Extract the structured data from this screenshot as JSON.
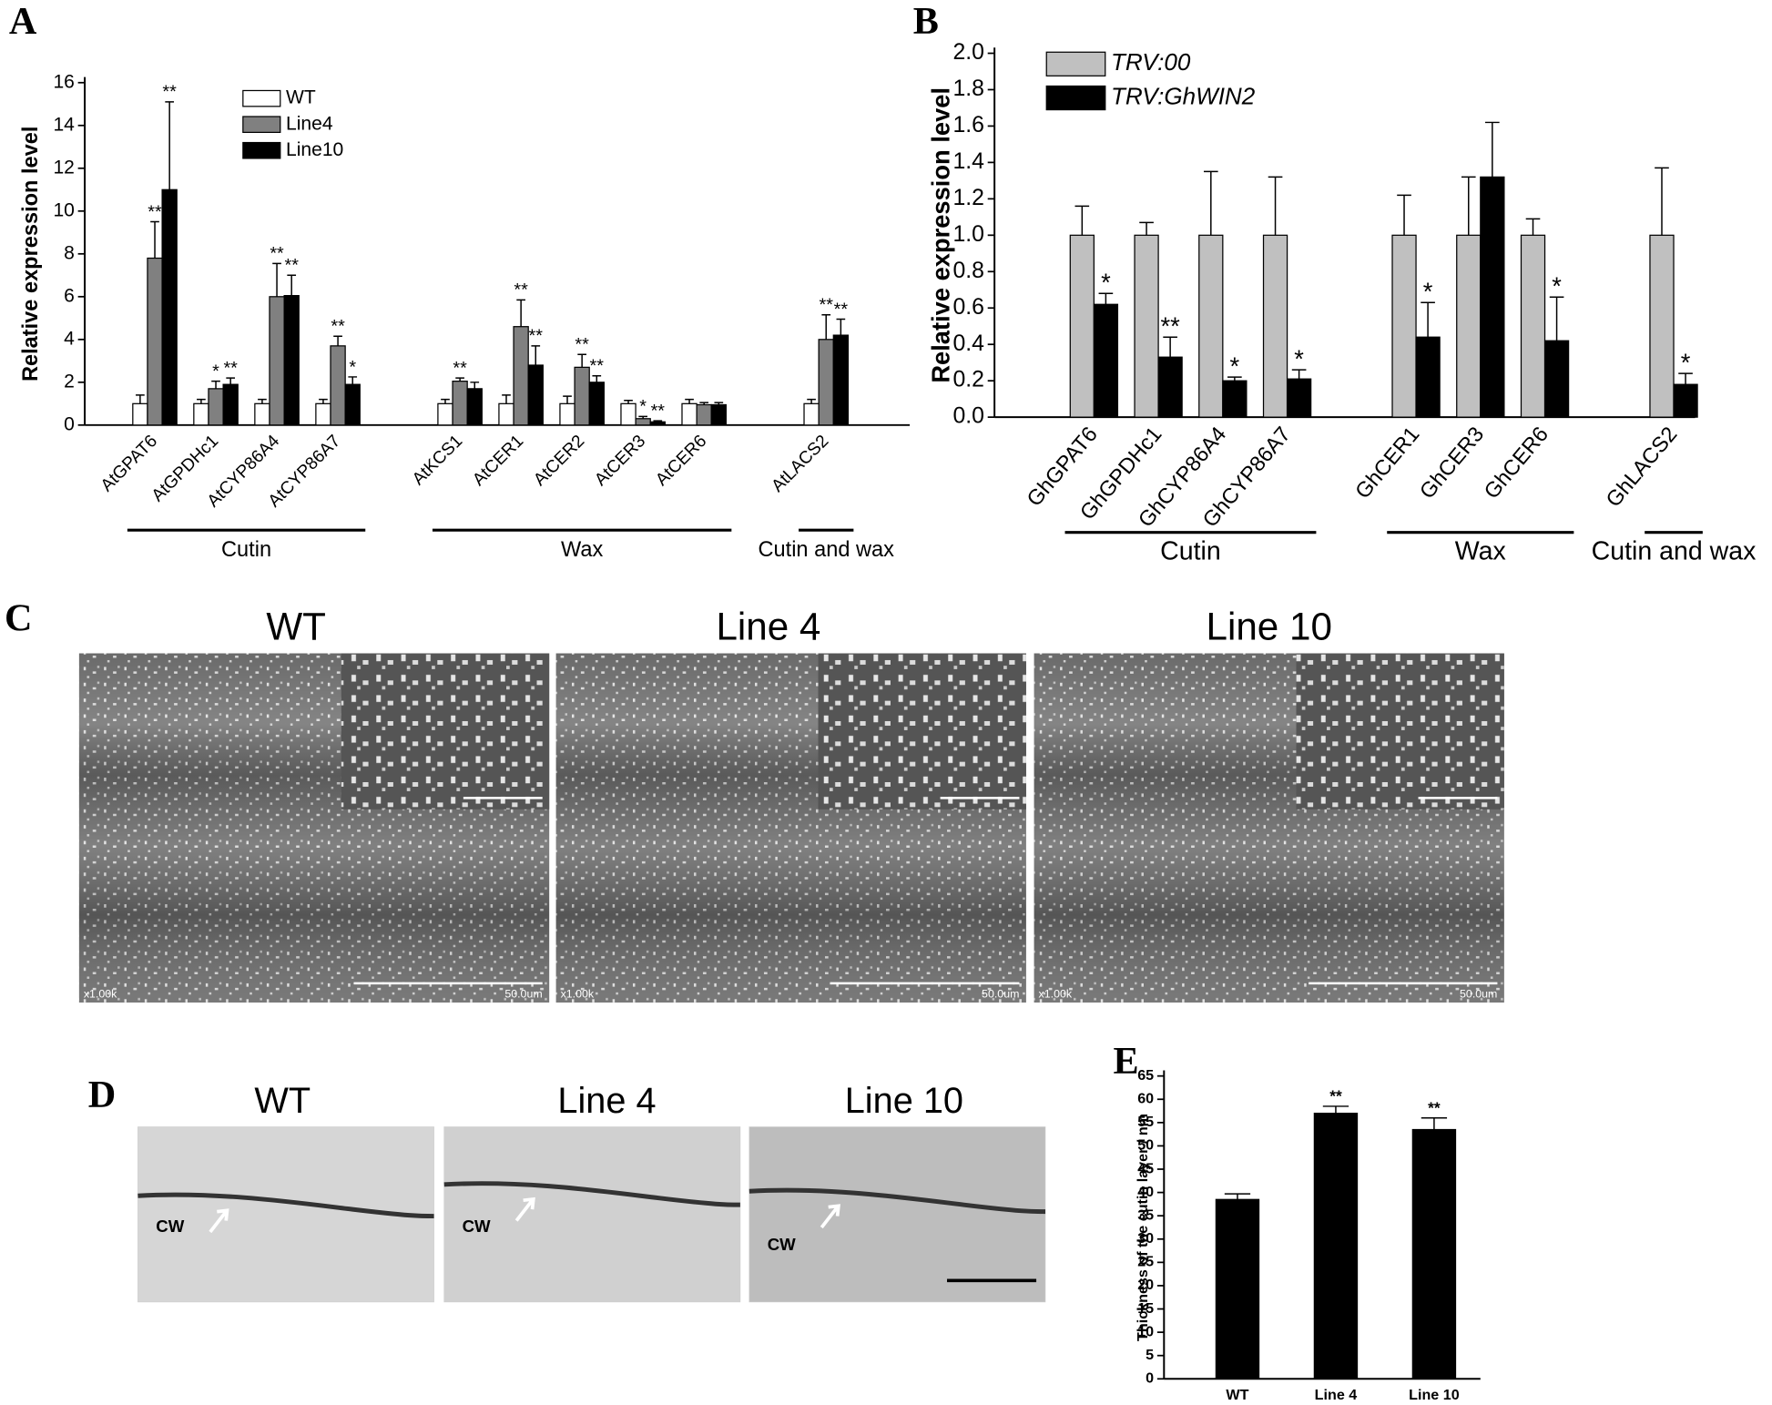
{
  "panel_labels": [
    "A",
    "B",
    "C",
    "D",
    "E"
  ],
  "chart_data": [
    {
      "type": "bar",
      "ylabel": "Relative expression level",
      "groups": [
        {
          "label": "Cutin",
          "categories": [
            "AtGPAT6",
            "AtGPDHc1",
            "AtCYP86A4",
            "AtCYP86A7"
          ]
        },
        {
          "label": "Wax",
          "categories": [
            "AtKCS1",
            "AtCER1",
            "AtCER2",
            "AtCER3",
            "AtCER6"
          ]
        },
        {
          "label": "Cutin and wax",
          "categories": [
            "AtLACS2"
          ]
        }
      ],
      "series": [
        {
          "name": "WT",
          "color": "#ffffff",
          "values": [
            1,
            1,
            1,
            1,
            1,
            1,
            1,
            1,
            1,
            1
          ],
          "errors": [
            0.4,
            0.2,
            0.2,
            0.2,
            0.2,
            0.4,
            0.35,
            0.15,
            0.2,
            0.2
          ]
        },
        {
          "name": "Line4",
          "color": "#808080",
          "values": [
            7.8,
            1.7,
            6.0,
            3.7,
            2.05,
            4.6,
            2.7,
            0.3,
            0.95,
            4.0
          ],
          "errors": [
            1.7,
            0.35,
            1.55,
            0.45,
            0.15,
            1.25,
            0.6,
            0.1,
            0.1,
            1.15
          ],
          "annotations": [
            "**",
            "*",
            "**",
            "**",
            "**",
            "**",
            "**",
            "*",
            null,
            "**"
          ]
        },
        {
          "name": "Line10",
          "color": "#000000",
          "values": [
            11.0,
            1.9,
            6.05,
            1.9,
            1.7,
            2.8,
            2.0,
            0.15,
            0.95,
            4.2
          ],
          "errors": [
            4.1,
            0.3,
            0.95,
            0.35,
            0.3,
            0.9,
            0.3,
            0.05,
            0.1,
            0.75
          ],
          "annotations": [
            "**",
            "**",
            "**",
            "*",
            null,
            "**",
            "**",
            "**",
            null,
            "**"
          ]
        }
      ],
      "ylim": [
        0,
        16
      ],
      "yticks": [
        0,
        2,
        4,
        6,
        8,
        10,
        12,
        14,
        16
      ],
      "legend": "upper left"
    },
    {
      "type": "bar",
      "ylabel": "Relative expression level",
      "groups": [
        {
          "label": "Cutin",
          "categories": [
            "GhGPAT6",
            "GhGPDHc1",
            "GhCYP86A4",
            "GhCYP86A7"
          ]
        },
        {
          "label": "Wax",
          "categories": [
            "GhCER1",
            "GhCER3",
            "GhCER6"
          ]
        },
        {
          "label": "Cutin and wax",
          "categories": [
            "GhLACS2"
          ]
        }
      ],
      "series": [
        {
          "name": "TRV:00",
          "color": "#c0c0c0",
          "values": [
            1,
            1,
            1,
            1,
            1,
            1,
            1,
            1
          ],
          "errors": [
            0.16,
            0.07,
            0.35,
            0.32,
            0.22,
            0.32,
            0.09,
            0.37
          ]
        },
        {
          "name": "TRV:GhWIN2",
          "color": "#000000",
          "values": [
            0.62,
            0.33,
            0.2,
            0.21,
            0.44,
            1.32,
            0.42,
            0.18
          ],
          "errors": [
            0.06,
            0.11,
            0.02,
            0.05,
            0.19,
            0.3,
            0.24,
            0.06
          ],
          "annotations": [
            "*",
            "**",
            "*",
            "*",
            "*",
            null,
            "*",
            "*"
          ]
        }
      ],
      "ylim": [
        0,
        2
      ],
      "yticks": [
        {
          "value": 0,
          "label": "0.0"
        },
        0.2,
        0.4,
        0.6,
        0.8,
        {
          "value": 1,
          "label": "1.0"
        },
        1.2,
        1.4,
        1.6,
        1.8,
        {
          "value": 2,
          "label": "2.0"
        }
      ],
      "legend": "upper left",
      "legend_italic": true
    },
    {
      "type": "bar",
      "ylabel": "Thickness of the cutin layer / nm",
      "categories": [
        "WT",
        "Line 4",
        "Line 10"
      ],
      "series": [
        {
          "color": "#000000",
          "values": [
            38.5,
            57,
            53.5
          ],
          "errors": [
            1.2,
            1.5,
            2.5
          ],
          "annotations": [
            null,
            "**",
            "**"
          ]
        }
      ],
      "ylim": [
        0,
        65
      ],
      "yticks": [
        0,
        5,
        10,
        15,
        20,
        25,
        30,
        35,
        40,
        45,
        50,
        55,
        60,
        65
      ]
    }
  ],
  "sem_panel": {
    "images": [
      {
        "title": "WT",
        "magnification": "x1.00k",
        "scale": "50.0um"
      },
      {
        "title": "Line 4",
        "magnification": "x1.00k",
        "scale": "50.0um"
      },
      {
        "title": "Line 10",
        "magnification": "x1.00k",
        "scale": "50.0um"
      }
    ]
  },
  "tem_panel": {
    "images": [
      {
        "title": "WT",
        "label": "CW"
      },
      {
        "title": "Line 4",
        "label": "CW"
      },
      {
        "title": "Line 10",
        "label": "CW"
      }
    ]
  }
}
